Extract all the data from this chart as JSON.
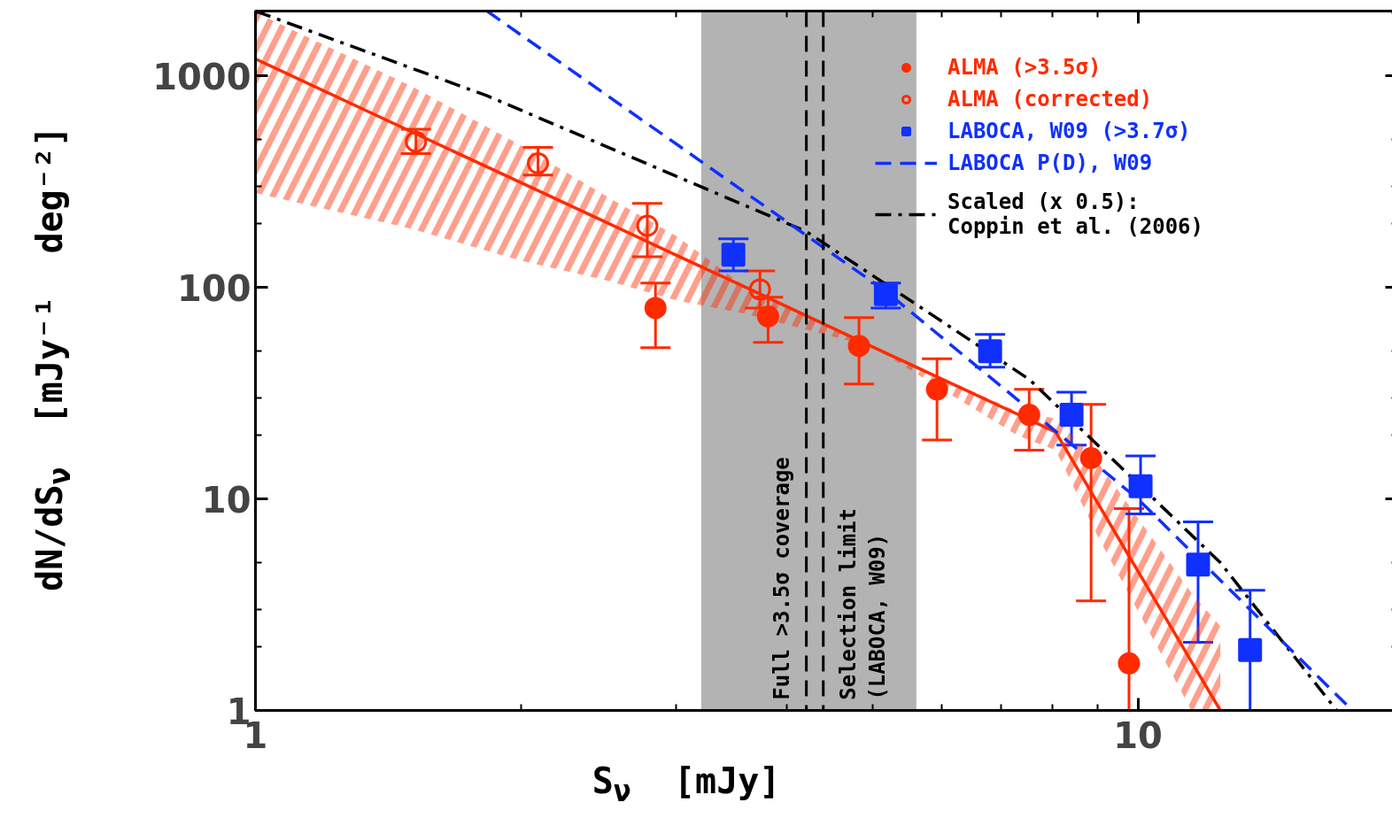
{
  "chart_data": {
    "type": "scatter",
    "xlabel": "S$_{ν}$  [mJy]",
    "ylabel": "dN/dS$_{ν}$  [mJy⁻¹  deg⁻²]",
    "log": "xy",
    "xlim": [
      1,
      19.7
    ],
    "ylim": [
      1,
      2030
    ],
    "xticks": [
      1,
      {
        "value": 2,
        "label": null
      },
      {
        "value": 3,
        "label": null
      },
      {
        "value": 4,
        "label": null
      },
      {
        "value": 5,
        "label": null
      },
      {
        "value": 6,
        "label": null
      },
      {
        "value": 7,
        "label": null
      },
      {
        "value": 8,
        "label": null
      },
      {
        "value": 9,
        "label": null
      },
      10
    ],
    "yticks": [
      1,
      {
        "value": 2,
        "label": null
      },
      {
        "value": 3,
        "label": null
      },
      {
        "value": 5,
        "label": null
      },
      10,
      {
        "value": 20,
        "label": null
      },
      {
        "value": 30,
        "label": null
      },
      {
        "value": 50,
        "label": null
      },
      100,
      {
        "value": 200,
        "label": null
      },
      {
        "value": 300,
        "label": null
      },
      {
        "value": 500,
        "label": null
      },
      1000,
      {
        "value": 2000,
        "label": null
      }
    ],
    "legend": "top right",
    "bands": [
      {
        "axis": "x",
        "from": 3.2,
        "to": 5.61,
        "color": "#b3b3b3"
      }
    ],
    "ref_lines": [
      {
        "axis": "x",
        "value": 4.21,
        "label": "Full >3.5σ coverage",
        "color": "#000000",
        "line_style": "dashed"
      },
      {
        "axis": "x",
        "value": 4.4,
        "label": "Selection limit\n(LABOCA, W09)",
        "color": "#000000",
        "line_style": "dashed"
      }
    ],
    "series": [
      {
        "type": "line",
        "x": [
          1,
          1.5,
          2,
          2.5,
          3,
          3.6,
          5,
          7.3,
          8.07,
          9,
          11.5,
          12.4
        ],
        "values": [
          1205,
          547,
          313,
          203,
          142,
          100,
          52.5,
          25.2,
          20.7,
          9.6,
          1.7,
          1
        ],
        "color": "#ff2a00",
        "line_style": "solid",
        "lower": [
          280,
          190,
          134,
          108,
          87,
          75,
          52.5,
          20,
          17,
          6.7,
          1,
          1
        ],
        "upper": [
          2000,
          900,
          470,
          270,
          175,
          100,
          52.5,
          26,
          24,
          15,
          3.6,
          2.5
        ]
      },
      {
        "type": "line",
        "x": [
          1,
          1.83,
          4.21,
          7.53,
          12.4,
          16.8
        ],
        "values": [
          2030,
          807,
          184,
          36.8,
          5,
          1
        ],
        "color": "#000000",
        "line_style": "dashdot",
        "name": "Scaled (x 0.5):\nCoppin et al. (2006)"
      },
      {
        "type": "line",
        "x": [
          1.83,
          5.18,
          10,
          17.5
        ],
        "values": [
          2030,
          96,
          10,
          1
        ],
        "color": "#1030ff",
        "line_style": "dashed",
        "name": "LABOCA P(D), W09"
      },
      {
        "marker": "circle",
        "name": "ALMA (>3.5σ)",
        "color": "#ff2a00",
        "x": [
          2.84,
          3.81,
          4.83,
          5.92,
          7.53,
          8.85,
          9.77
        ],
        "values": [
          80,
          73,
          53,
          33,
          25,
          15.6,
          1.67
        ],
        "errors": [
          [
            52,
            105
          ],
          [
            55,
            90
          ],
          [
            35,
            72
          ],
          [
            19,
            46
          ],
          [
            17,
            33
          ],
          [
            3.3,
            28
          ],
          [
            1,
            9
          ]
        ]
      },
      {
        "marker": "circle_open",
        "name": "ALMA (corrected)",
        "color": "#ff2a00",
        "x": [
          1.52,
          2.09,
          2.78,
          3.73
        ],
        "values": [
          489,
          387,
          196,
          98
        ],
        "errors": [
          [
            430,
            560
          ],
          [
            340,
            460
          ],
          [
            140,
            250
          ],
          [
            80,
            120
          ]
        ]
      },
      {
        "marker": "square",
        "name": "LABOCA, W09 (>3.7σ)",
        "color": "#1030ff",
        "x": [
          3.48,
          5.18,
          6.8,
          8.41,
          10.07,
          11.7,
          13.4
        ],
        "values": [
          143,
          93,
          50,
          25,
          11.5,
          4.9,
          1.93
        ],
        "errors": [
          [
            120,
            170
          ],
          [
            80,
            105
          ],
          [
            42,
            60
          ],
          [
            18,
            32
          ],
          [
            8.5,
            16
          ],
          [
            2.1,
            7.8
          ],
          [
            1,
            3.7
          ]
        ]
      }
    ]
  }
}
